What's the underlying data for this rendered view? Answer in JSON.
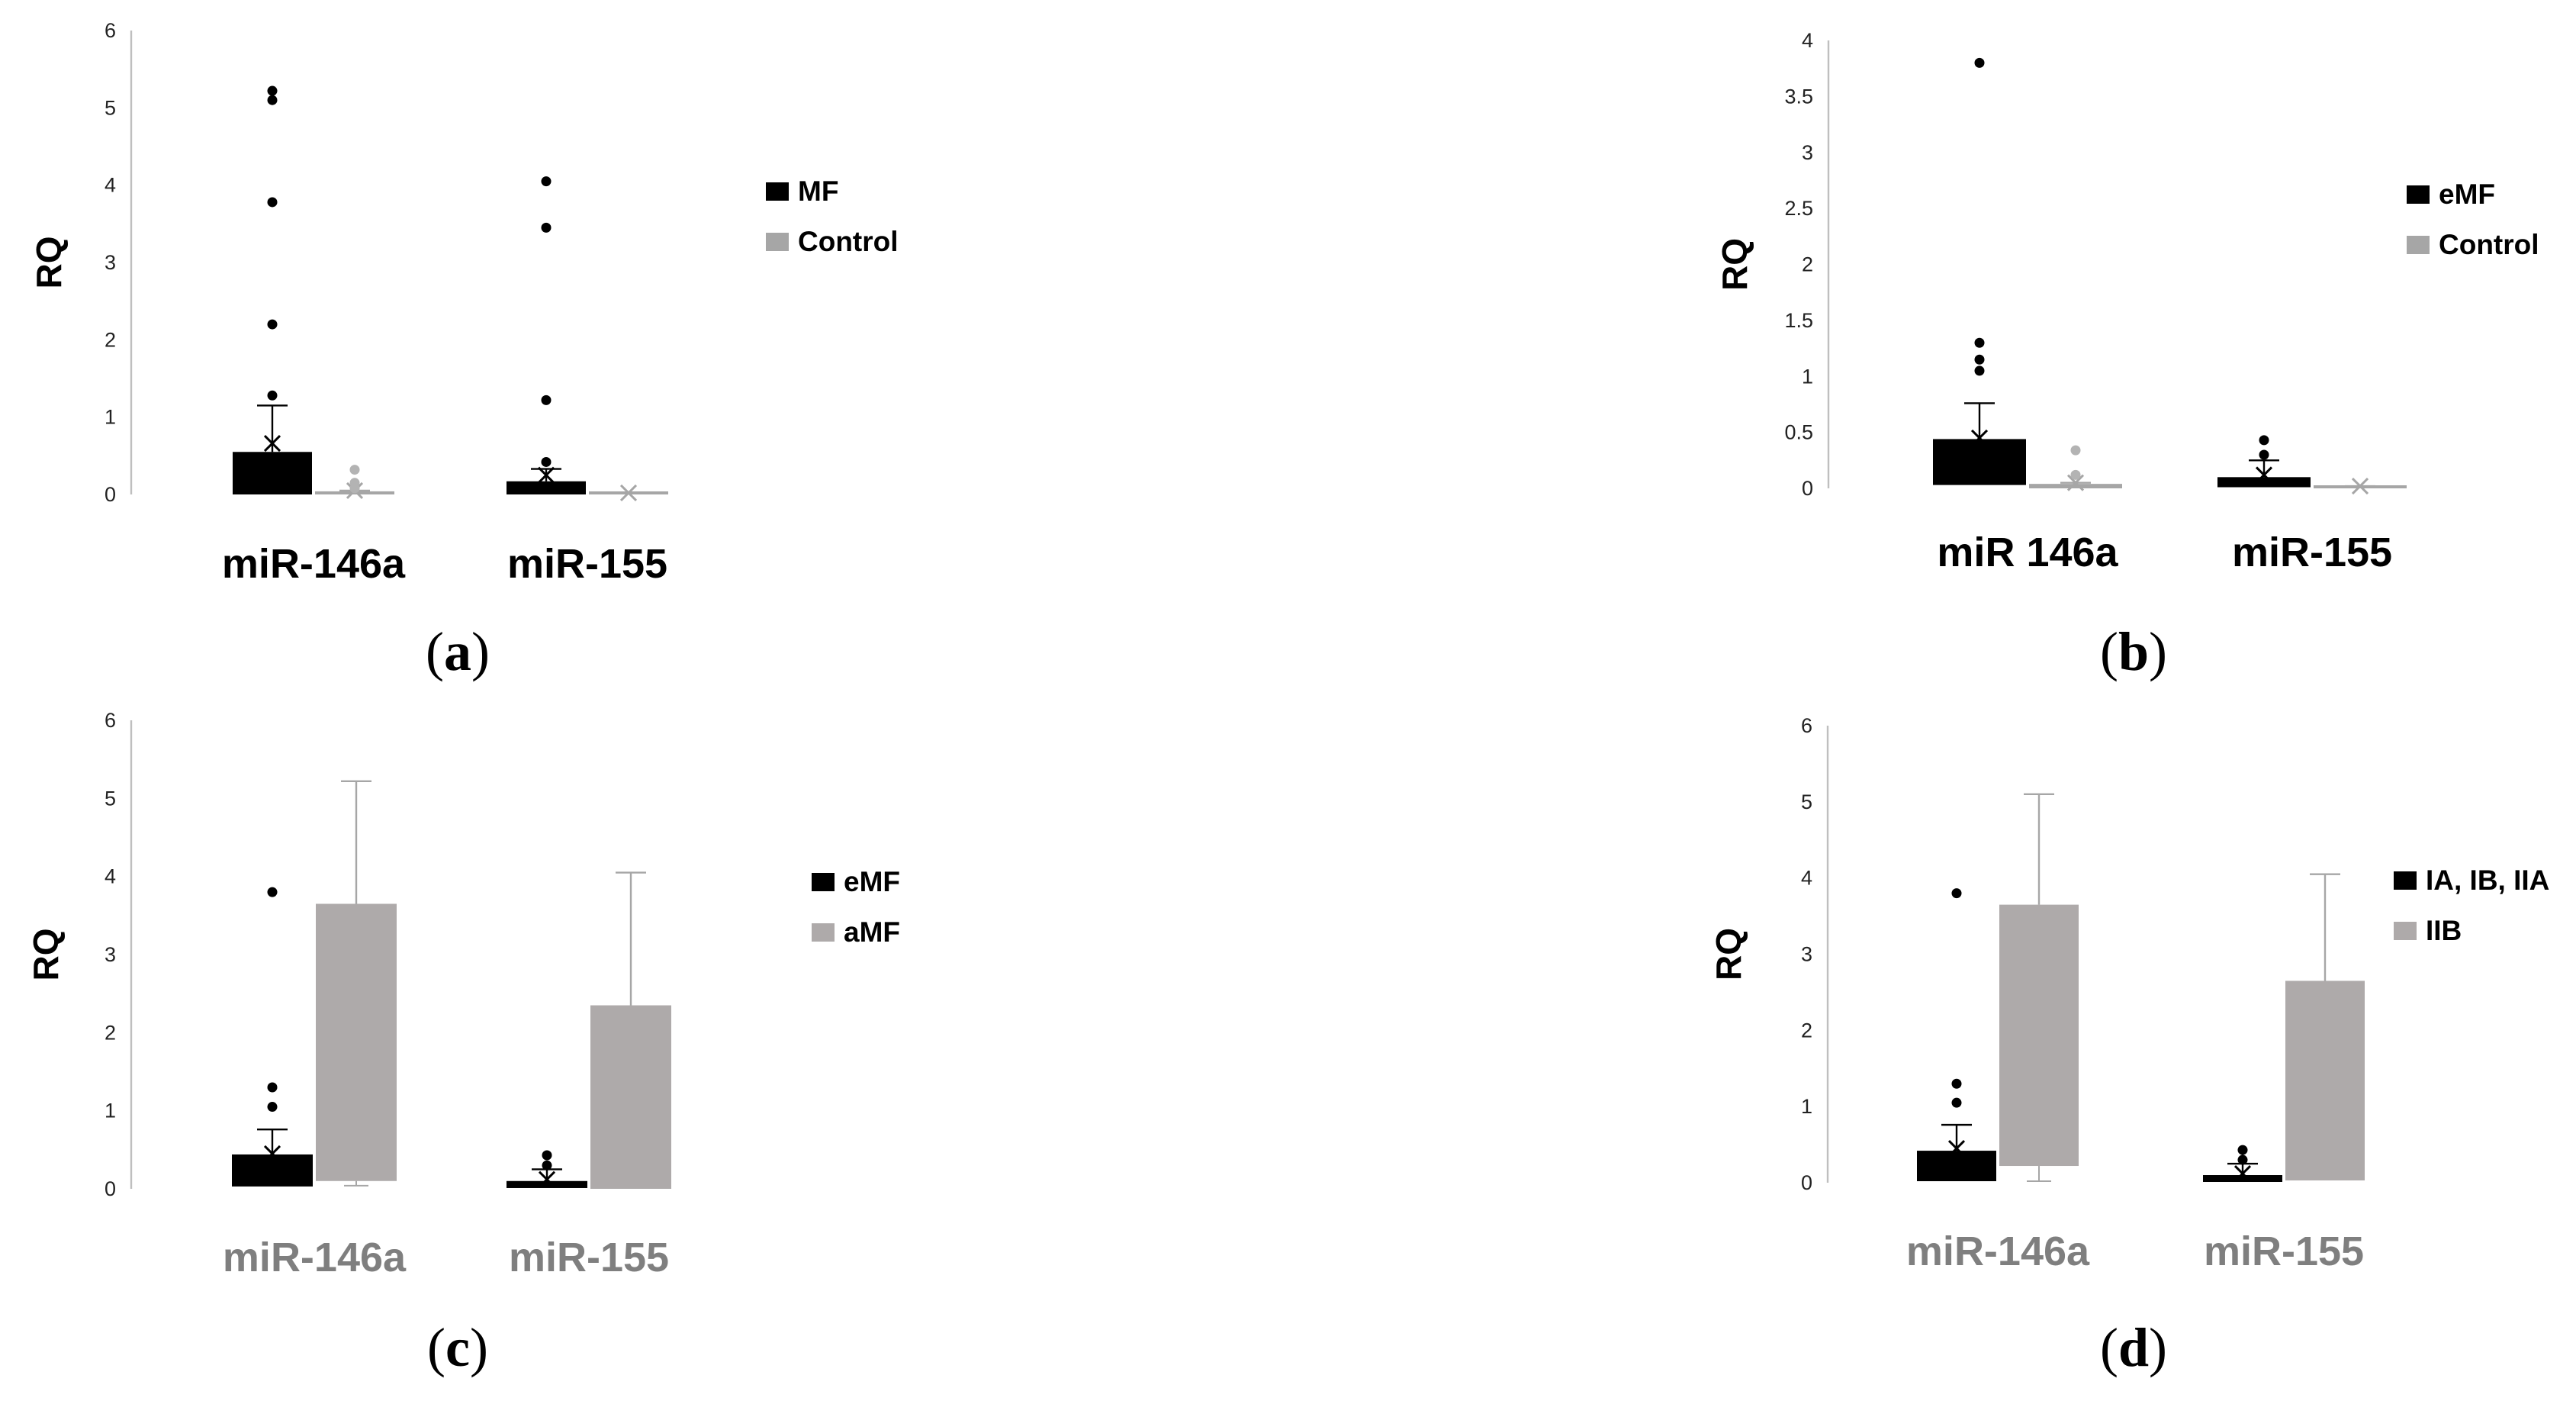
{
  "chart_data": [
    {
      "panel_label": "a",
      "type": "bar",
      "ylabel": "RQ",
      "ylim": [
        0,
        6
      ],
      "yticks": [
        "0",
        "1",
        "2",
        "3",
        "4",
        "5",
        "6"
      ],
      "category_label_color": "#000000",
      "categories": [
        "miR-146a",
        "miR-155"
      ],
      "series": [
        {
          "name": "MF",
          "color": "#000000",
          "values": [
            0.55,
            0.17
          ],
          "base": [
            0.0,
            0.0
          ],
          "error_upper": [
            1.15,
            0.33
          ],
          "mean": [
            0.66,
            0.25
          ],
          "outliers": [
            [
              5.22,
              5.1,
              3.78,
              2.2,
              1.28
            ],
            [
              4.05,
              3.45,
              1.22,
              0.42
            ]
          ]
        },
        {
          "name": "Control",
          "color": "#a6a6a6",
          "values": [
            0.04,
            0.01
          ],
          "base": [
            0.0,
            0.0
          ],
          "error_upper": [
            0.05,
            0.02
          ],
          "mean": [
            0.05,
            0.02
          ],
          "outliers": [
            [
              0.32,
              0.15,
              0.08
            ],
            []
          ]
        }
      ]
    },
    {
      "panel_label": "b",
      "type": "bar",
      "ylabel": "RQ",
      "ylim": [
        0,
        4
      ],
      "yticks": [
        "0",
        "0.5",
        "1",
        "1.5",
        "2",
        "2.5",
        "3",
        "3.5",
        "4"
      ],
      "category_label_color": "#000000",
      "categories": [
        "miR 146a",
        "miR-155"
      ],
      "series": [
        {
          "name": "eMF",
          "color": "#000000",
          "values": [
            0.44,
            0.1
          ],
          "base": [
            0.03,
            0.01
          ],
          "error_upper": [
            0.76,
            0.25
          ],
          "mean": [
            0.45,
            0.12
          ],
          "outliers": [
            [
              3.8,
              1.3,
              1.15,
              1.05
            ],
            [
              0.43,
              0.3
            ]
          ]
        },
        {
          "name": "Control",
          "color": "#a6a6a6",
          "values": [
            0.04,
            0.01
          ],
          "base": [
            0.0,
            0.0
          ],
          "error_upper": [
            0.05,
            0.02
          ],
          "mean": [
            0.05,
            0.02
          ],
          "outliers": [
            [
              0.34,
              0.12
            ],
            []
          ]
        }
      ]
    },
    {
      "panel_label": "c",
      "type": "bar",
      "ylabel": "RQ",
      "ylim": [
        0,
        6
      ],
      "yticks": [
        "0",
        "1",
        "2",
        "3",
        "4",
        "5",
        "6"
      ],
      "category_label_color": "#7f7f7f",
      "categories": [
        "miR-146a",
        "miR-155"
      ],
      "series": [
        {
          "name": "eMF",
          "color": "#000000",
          "values": [
            0.44,
            0.1
          ],
          "base": [
            0.03,
            0.01
          ],
          "error_upper": [
            0.76,
            0.25
          ],
          "mean": [
            0.45,
            0.12
          ],
          "outliers": [
            [
              3.8,
              1.3,
              1.05
            ],
            [
              0.43,
              0.3
            ]
          ]
        },
        {
          "name": "aMF",
          "color": "#aeaaaa",
          "values": [
            3.65,
            2.35
          ],
          "base": [
            0.1,
            0.0
          ],
          "error_upper": [
            5.22,
            4.05
          ],
          "error_lower": [
            0.04,
            0.0
          ],
          "outliers": [
            [],
            []
          ]
        }
      ]
    },
    {
      "panel_label": "d",
      "type": "bar",
      "ylabel": "RQ",
      "ylim": [
        0,
        6
      ],
      "yticks": [
        "0",
        "1",
        "2",
        "3",
        "4",
        "5",
        "6"
      ],
      "category_label_color": "#7f7f7f",
      "categories": [
        "miR-146a",
        "miR-155"
      ],
      "series": [
        {
          "name": "IA, IB, IIA",
          "color": "#000000",
          "values": [
            0.42,
            0.1
          ],
          "base": [
            0.02,
            0.01
          ],
          "error_upper": [
            0.76,
            0.25
          ],
          "mean": [
            0.45,
            0.12
          ],
          "outliers": [
            [
              3.8,
              1.3,
              1.05
            ],
            [
              0.43,
              0.3
            ]
          ]
        },
        {
          "name": "IIB",
          "color": "#aeaaaa",
          "values": [
            3.65,
            2.65
          ],
          "base": [
            0.22,
            0.03
          ],
          "error_upper": [
            5.1,
            4.05
          ],
          "error_lower": [
            0.02,
            0.03
          ],
          "outliers": [
            [],
            []
          ]
        }
      ]
    }
  ]
}
